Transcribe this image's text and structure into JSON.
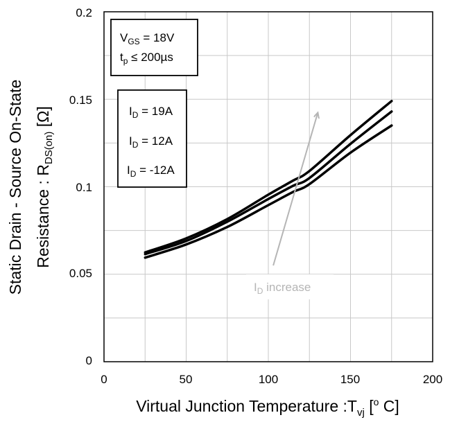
{
  "chart_data": {
    "type": "line",
    "xlabel": "Virtual Junction Temperature :Tvj [o C]",
    "ylabel_line1": "Static Drain - Source On-State",
    "ylabel_line2": "Resistance : RDS(on) [Ω]",
    "xlim": [
      0,
      200
    ],
    "ylim": [
      0,
      0.2
    ],
    "xticks": [
      0,
      50,
      100,
      150,
      200
    ],
    "xtick_labels": [
      "0",
      "50",
      "100",
      "150",
      "200"
    ],
    "yticks": [
      0,
      0.05,
      0.1,
      0.15,
      0.2
    ],
    "ytick_labels": [
      "0",
      "0.05",
      "0.1",
      "0.15",
      "0.2"
    ],
    "grid": true,
    "x": [
      25,
      50,
      75,
      100,
      115,
      125,
      150,
      175
    ],
    "series": [
      {
        "name": "ID = 19A",
        "values": [
          0.0625,
          0.0705,
          0.0815,
          0.0955,
          0.1035,
          0.109,
          0.1295,
          0.149
        ]
      },
      {
        "name": "ID = 12A",
        "values": [
          0.0615,
          0.069,
          0.08,
          0.093,
          0.1005,
          0.105,
          0.1245,
          0.143
        ]
      },
      {
        "name": "ID = -12A",
        "values": [
          0.0595,
          0.067,
          0.077,
          0.0895,
          0.097,
          0.1015,
          0.1195,
          0.135
        ]
      }
    ],
    "conditions": [
      "VGS = 18V",
      "tp ≤ 200µs"
    ],
    "legend_entries": [
      "ID = 19A",
      "ID = 12A",
      "ID = -12A"
    ],
    "annotation": "ID increase",
    "annotation_arrow": {
      "from": [
        103,
        0.055
      ],
      "to": [
        130,
        0.142
      ]
    },
    "colors": {
      "series": "#000000",
      "annotation": "#b5b5b5",
      "grid": "#c8c8c8"
    }
  }
}
